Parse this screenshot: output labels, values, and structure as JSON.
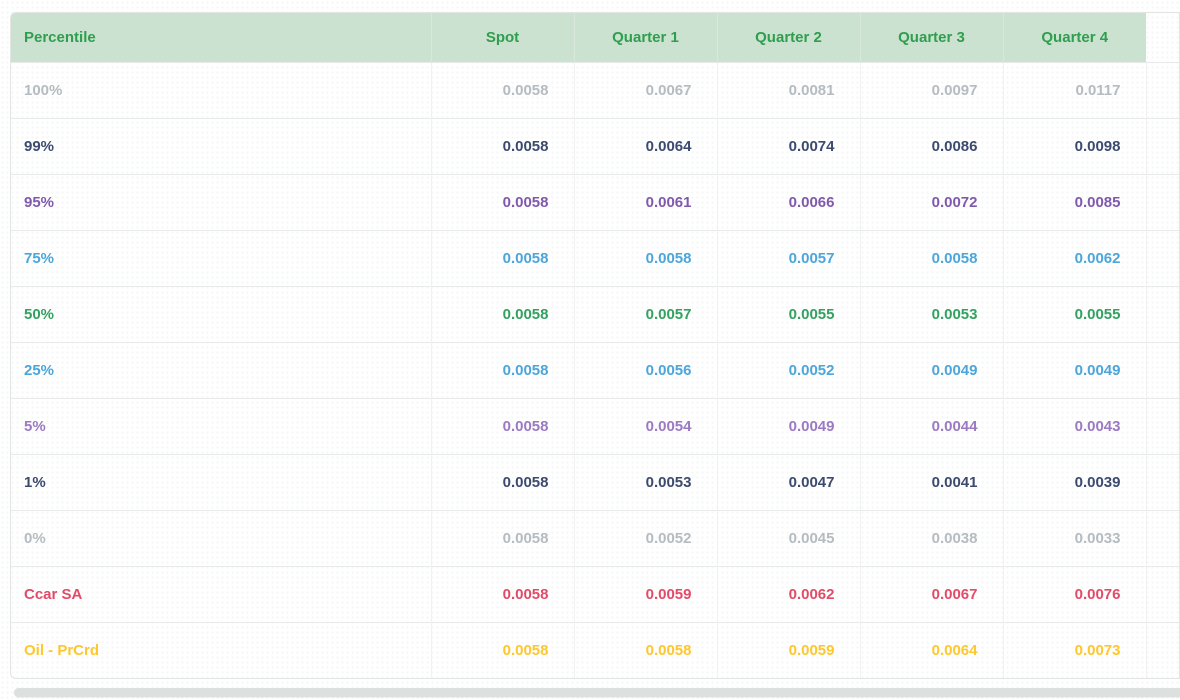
{
  "colors": {
    "header_bg": "#cbe2d0",
    "header_text": "#2f9e4f",
    "scrollbar": "#dce0df",
    "row_gray": "#b5bcc1",
    "row_dark_navy": "#3b4a6e",
    "row_purple": "#8059ad",
    "row_light_purple": "#9b7ac3",
    "row_blue": "#4ca6da",
    "row_green": "#33a15f",
    "row_red": "#e24b68",
    "row_yellow": "#fec72e"
  },
  "chart_data": {
    "type": "table",
    "columns": [
      "Percentile",
      "Spot",
      "Quarter 1",
      "Quarter 2",
      "Quarter 3",
      "Quarter 4"
    ],
    "rows": [
      {
        "label": "100%",
        "color": "#b5bcc1",
        "values": [
          "0.0058",
          "0.0067",
          "0.0081",
          "0.0097",
          "0.0117"
        ]
      },
      {
        "label": "99%",
        "color": "#3b4a6e",
        "values": [
          "0.0058",
          "0.0064",
          "0.0074",
          "0.0086",
          "0.0098"
        ]
      },
      {
        "label": "95%",
        "color": "#8059ad",
        "values": [
          "0.0058",
          "0.0061",
          "0.0066",
          "0.0072",
          "0.0085"
        ]
      },
      {
        "label": "75%",
        "color": "#4ca6da",
        "values": [
          "0.0058",
          "0.0058",
          "0.0057",
          "0.0058",
          "0.0062"
        ]
      },
      {
        "label": "50%",
        "color": "#33a15f",
        "values": [
          "0.0058",
          "0.0057",
          "0.0055",
          "0.0053",
          "0.0055"
        ]
      },
      {
        "label": "25%",
        "color": "#4ca6da",
        "values": [
          "0.0058",
          "0.0056",
          "0.0052",
          "0.0049",
          "0.0049"
        ]
      },
      {
        "label": "5%",
        "color": "#9b7ac3",
        "values": [
          "0.0058",
          "0.0054",
          "0.0049",
          "0.0044",
          "0.0043"
        ]
      },
      {
        "label": "1%",
        "color": "#3b4a6e",
        "values": [
          "0.0058",
          "0.0053",
          "0.0047",
          "0.0041",
          "0.0039"
        ]
      },
      {
        "label": "0%",
        "color": "#b5bcc1",
        "values": [
          "0.0058",
          "0.0052",
          "0.0045",
          "0.0038",
          "0.0033"
        ]
      },
      {
        "label": "Ccar SA",
        "color": "#e24b68",
        "values": [
          "0.0058",
          "0.0059",
          "0.0062",
          "0.0067",
          "0.0076"
        ]
      },
      {
        "label": "Oil - PrCrd",
        "color": "#fec72e",
        "values": [
          "0.0058",
          "0.0058",
          "0.0059",
          "0.0064",
          "0.0073"
        ]
      }
    ]
  }
}
